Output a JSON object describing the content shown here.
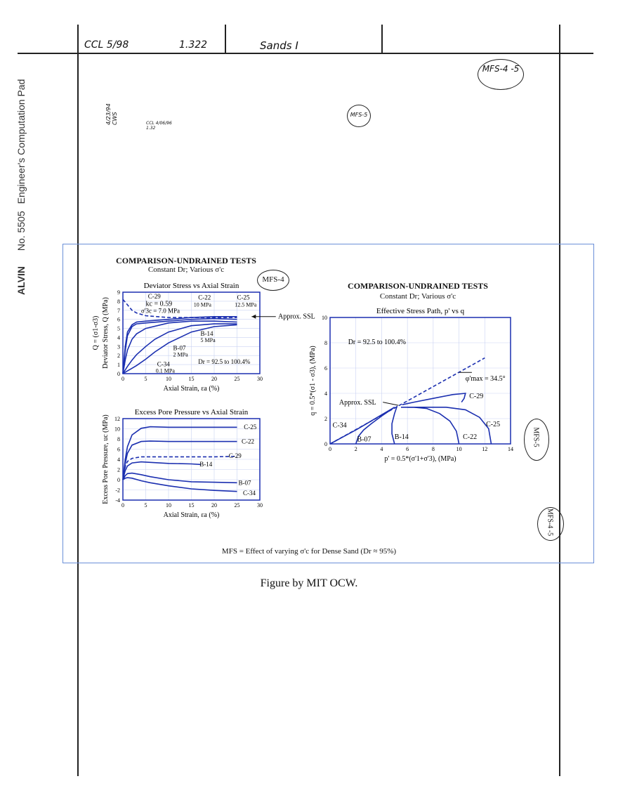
{
  "notebook": {
    "header_left": "CCL 5/98",
    "header_mid": "1.322",
    "header_right": "Sands I",
    "tag_top_right": "MFS-4 -5",
    "tag_mid": "MFS-5",
    "margin_note_date": "4/23/94 CWS",
    "margin_note_ccl": "CCL 4/06/96 1.32",
    "pad_label_number": "No. 5505",
    "pad_label_text": "Engineer's Computation Pad",
    "brand": "ALVIN"
  },
  "figure": {
    "left_title": "COMPARISON-UNDRAINED TESTS",
    "left_subtitle": "Constant Dr; Various σ'c",
    "right_title": "COMPARISON-UNDRAINED TESTS",
    "right_subtitle": "Constant Dr; Various σ'c",
    "mfs4_label": "MFS-4",
    "mfs5_label": "MFS-5",
    "mfs45_label": "MFS-4 -5",
    "footnote": "MFS = Effect of varying σ'c for Dense Sand (Dr ≈ 95%)",
    "caption": "Figure by MIT OCW."
  },
  "chart_data": [
    {
      "type": "line",
      "title": "Deviator Stress vs Axial Strain",
      "xlabel": "Axial Strain, εa (%)",
      "ylabel": "Deviator Stress, Q (MPa)",
      "ylabel2": "Q = (σ1-σ3)",
      "xlim": [
        0,
        30
      ],
      "ylim": [
        0,
        9
      ],
      "xticks": [
        "0",
        "5",
        "10",
        "15",
        "20",
        "25",
        "30"
      ],
      "yticks": [
        "0",
        "1",
        "2",
        "3",
        "4",
        "5",
        "6",
        "7",
        "8",
        "9"
      ],
      "grid": true,
      "annotations": {
        "kc": "kc = 0.59",
        "sigma3c": "σ'3c = 7.0 MPa",
        "dr": "Dr = 92.5 to 100.4%",
        "ssl": "Approx. SSL",
        "c29": "C-29",
        "c22": "C-22",
        "c22_p": "10 MPa",
        "c25": "C-25",
        "c25_p": "12.5 MPa",
        "b14": "B-14",
        "b14_p": "5 MPa",
        "b07": "B-07",
        "b07_p": "2 MPa",
        "c34": "C-34",
        "c34_p": "0.1 MPa"
      },
      "series": [
        {
          "name": "C-29",
          "dashed": true,
          "x": [
            0,
            1,
            2,
            3,
            5,
            10,
            15,
            20,
            25
          ],
          "y": [
            8.2,
            7.6,
            7.0,
            6.7,
            6.4,
            6.2,
            6.2,
            6.2,
            6.2
          ]
        },
        {
          "name": "C-25",
          "x": [
            0,
            0.5,
            1,
            2,
            3,
            5,
            10,
            15,
            20,
            25
          ],
          "y": [
            0,
            3.0,
            4.6,
            5.4,
            5.7,
            5.8,
            6.0,
            6.2,
            6.3,
            6.3
          ]
        },
        {
          "name": "C-22",
          "x": [
            0,
            0.5,
            1,
            2,
            3,
            5,
            10,
            15,
            20,
            25
          ],
          "y": [
            0,
            2.5,
            4.2,
            5.2,
            5.5,
            5.6,
            5.8,
            6.0,
            6.1,
            6.0
          ]
        },
        {
          "name": "B-14",
          "x": [
            0,
            0.5,
            1,
            2,
            3,
            5,
            10,
            15,
            20,
            25
          ],
          "y": [
            0,
            1.5,
            2.6,
            3.8,
            4.4,
            5.0,
            5.6,
            5.8,
            5.8,
            5.7
          ]
        },
        {
          "name": "B-07",
          "x": [
            0,
            1,
            2,
            3,
            5,
            7,
            10,
            15,
            20,
            25
          ],
          "y": [
            0,
            0.8,
            1.5,
            2.1,
            3.0,
            3.8,
            4.6,
            5.3,
            5.5,
            5.5
          ]
        },
        {
          "name": "C-34",
          "x": [
            0,
            1,
            2,
            3,
            5,
            7,
            10,
            15,
            20,
            25
          ],
          "y": [
            0,
            0.3,
            0.6,
            0.9,
            1.6,
            2.4,
            3.4,
            4.6,
            5.2,
            5.4
          ]
        }
      ]
    },
    {
      "type": "line",
      "title": "Excess Pore Pressure vs Axial Strain",
      "xlabel": "Axial Strain, εa (%)",
      "ylabel": "Excess Pore Pressure, uc (MPa)",
      "xlim": [
        0,
        30
      ],
      "ylim": [
        -4,
        12
      ],
      "xticks": [
        "0",
        "5",
        "10",
        "15",
        "20",
        "25",
        "30"
      ],
      "yticks": [
        "-4",
        "-2",
        "0",
        "2",
        "4",
        "6",
        "8",
        "10",
        "12"
      ],
      "grid": true,
      "series": [
        {
          "name": "C-25",
          "x": [
            0,
            0.5,
            1,
            2,
            4,
            6,
            10,
            15,
            20,
            25
          ],
          "y": [
            0,
            4.0,
            6.5,
            8.8,
            10.1,
            10.4,
            10.3,
            10.3,
            10.3,
            10.3
          ]
        },
        {
          "name": "C-22",
          "x": [
            0,
            0.5,
            1,
            2,
            4,
            6,
            10,
            15,
            20,
            25
          ],
          "y": [
            0,
            3.2,
            5.2,
            6.8,
            7.5,
            7.6,
            7.5,
            7.5,
            7.5,
            7.5
          ]
        },
        {
          "name": "C-29",
          "dashed": true,
          "x": [
            0,
            0.5,
            1,
            2,
            4,
            6,
            10,
            15,
            20,
            25
          ],
          "y": [
            0,
            2.6,
            3.6,
            4.2,
            4.5,
            4.5,
            4.5,
            4.5,
            4.5,
            4.6
          ]
        },
        {
          "name": "B-14",
          "x": [
            0,
            0.5,
            1,
            2,
            4,
            6,
            10,
            15,
            17
          ],
          "y": [
            0,
            1.8,
            2.7,
            3.3,
            3.5,
            3.4,
            3.2,
            3.1,
            3.0
          ]
        },
        {
          "name": "B-07",
          "x": [
            0,
            0.5,
            1,
            2,
            4,
            6,
            10,
            15,
            20,
            25
          ],
          "y": [
            0,
            0.8,
            1.2,
            1.3,
            1.0,
            0.6,
            0.0,
            -0.4,
            -0.5,
            -0.6
          ]
        },
        {
          "name": "C-34",
          "x": [
            0,
            0.5,
            1,
            2,
            4,
            6,
            10,
            15,
            20,
            25
          ],
          "y": [
            0,
            0.3,
            0.4,
            0.3,
            -0.2,
            -0.6,
            -1.2,
            -1.8,
            -2.1,
            -2.3
          ]
        }
      ]
    },
    {
      "type": "line",
      "title": "Effective Stress Path, p' vs q",
      "xlabel": "p' = 0.5*(σ'1+σ'3), (MPa)",
      "ylabel": "q = 0.5*(σ1 - σ3), (MPa)",
      "xlim": [
        0,
        14
      ],
      "ylim": [
        0,
        10
      ],
      "xticks": [
        "0",
        "2",
        "4",
        "6",
        "8",
        "10",
        "12",
        "14"
      ],
      "yticks": [
        "0",
        "2",
        "4",
        "6",
        "8",
        "10"
      ],
      "grid": true,
      "annotations": {
        "dr": "Dr = 92.5 to 100.4%",
        "phi": "φ'max = 34.5°",
        "ssl": "Approx. SSL"
      },
      "series": [
        {
          "name": "SSL",
          "dashed": true,
          "x": [
            0,
            12.0
          ],
          "y": [
            0,
            6.8
          ]
        },
        {
          "name": "C-34",
          "x": [
            0,
            1.0,
            2.0,
            3.0,
            4.0,
            5.0
          ],
          "y": [
            0,
            0.55,
            1.1,
            1.7,
            2.3,
            2.9
          ]
        },
        {
          "name": "B-07",
          "x": [
            2.0,
            2.2,
            2.6,
            3.2,
            4.0,
            5.0
          ],
          "y": [
            0,
            0.6,
            1.1,
            1.6,
            2.2,
            2.9
          ]
        },
        {
          "name": "B-14",
          "x": [
            5.0,
            4.8,
            4.8,
            5.0,
            5.2
          ],
          "y": [
            0,
            0.8,
            1.6,
            2.4,
            3.0
          ]
        },
        {
          "name": "C-22",
          "x": [
            10.0,
            9.8,
            9.3,
            8.5,
            7.5,
            6.5,
            5.5
          ],
          "y": [
            0,
            1.0,
            1.8,
            2.4,
            2.8,
            2.9,
            2.9
          ]
        },
        {
          "name": "C-25",
          "x": [
            12.5,
            12.3,
            11.6,
            10.5,
            9.0,
            7.5,
            6.0
          ],
          "y": [
            0,
            1.2,
            2.1,
            2.7,
            2.9,
            2.9,
            2.9
          ]
        },
        {
          "name": "C-29",
          "x": [
            5.6,
            6.5,
            8.0,
            9.5,
            10.5,
            10.4,
            10.2
          ],
          "y": [
            3.1,
            3.3,
            3.6,
            3.9,
            4.0,
            3.6,
            3.3
          ]
        }
      ]
    }
  ]
}
